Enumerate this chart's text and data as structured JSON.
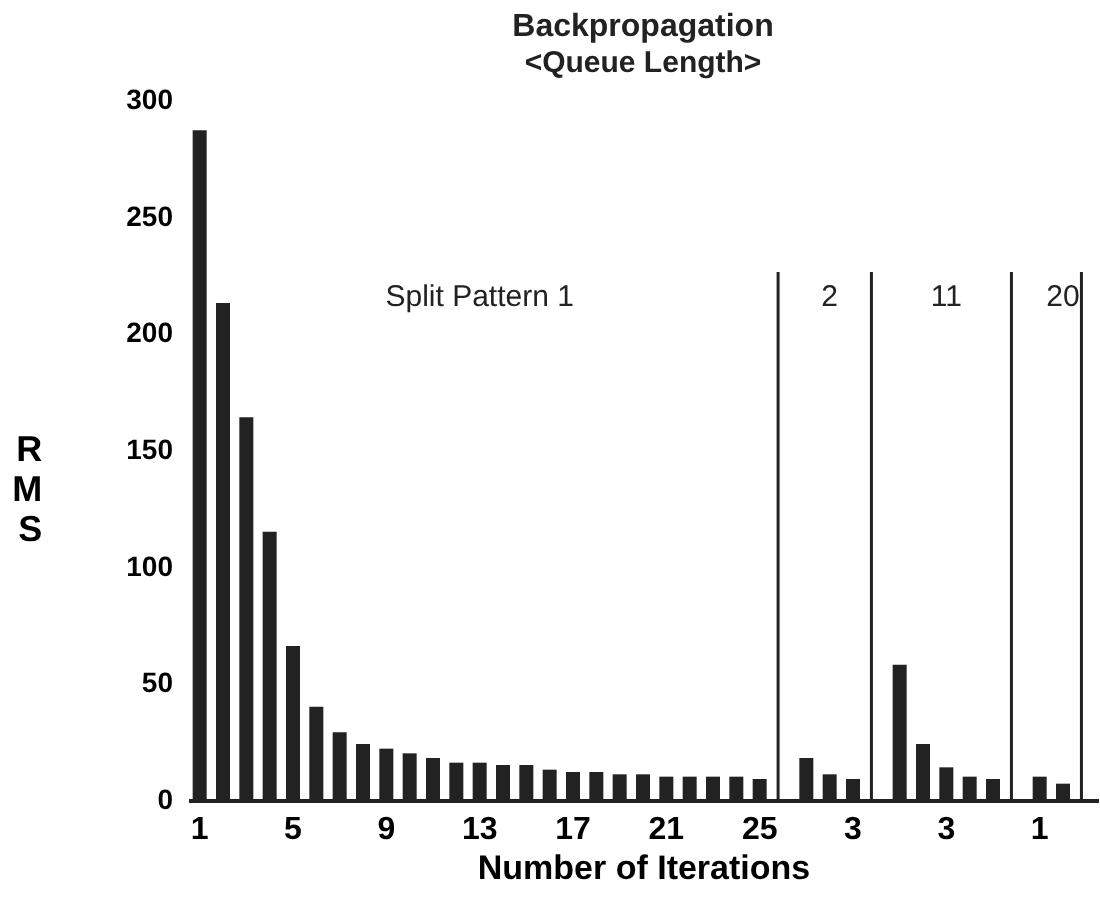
{
  "chart_data": {
    "type": "bar",
    "title": "Backpropagation",
    "subtitle": "<Queue Length>",
    "xlabel": "Number of Iterations",
    "ylabel": "RMS",
    "categories": [
      "1",
      null,
      null,
      null,
      "5",
      null,
      null,
      null,
      "9",
      null,
      null,
      null,
      "13",
      null,
      null,
      null,
      "17",
      null,
      null,
      null,
      "21",
      null,
      null,
      null,
      "25",
      null,
      null,
      null,
      "3",
      null,
      null,
      null,
      "3",
      null,
      null,
      null,
      "1",
      null,
      null
    ],
    "values": [
      287,
      213,
      164,
      115,
      66,
      40,
      29,
      24,
      22,
      20,
      18,
      16,
      16,
      15,
      15,
      13,
      12,
      12,
      11,
      11,
      10,
      10,
      10,
      10,
      9,
      null,
      18,
      11,
      9,
      null,
      58,
      24,
      14,
      10,
      9,
      null,
      10,
      7,
      null
    ],
    "color": "#222222",
    "ylim": [
      0,
      300
    ],
    "yticks": [
      0,
      50,
      100,
      150,
      200,
      250,
      300
    ],
    "grid": false,
    "annotations": [
      "Split Pattern 1",
      "2",
      "11",
      "20"
    ]
  }
}
